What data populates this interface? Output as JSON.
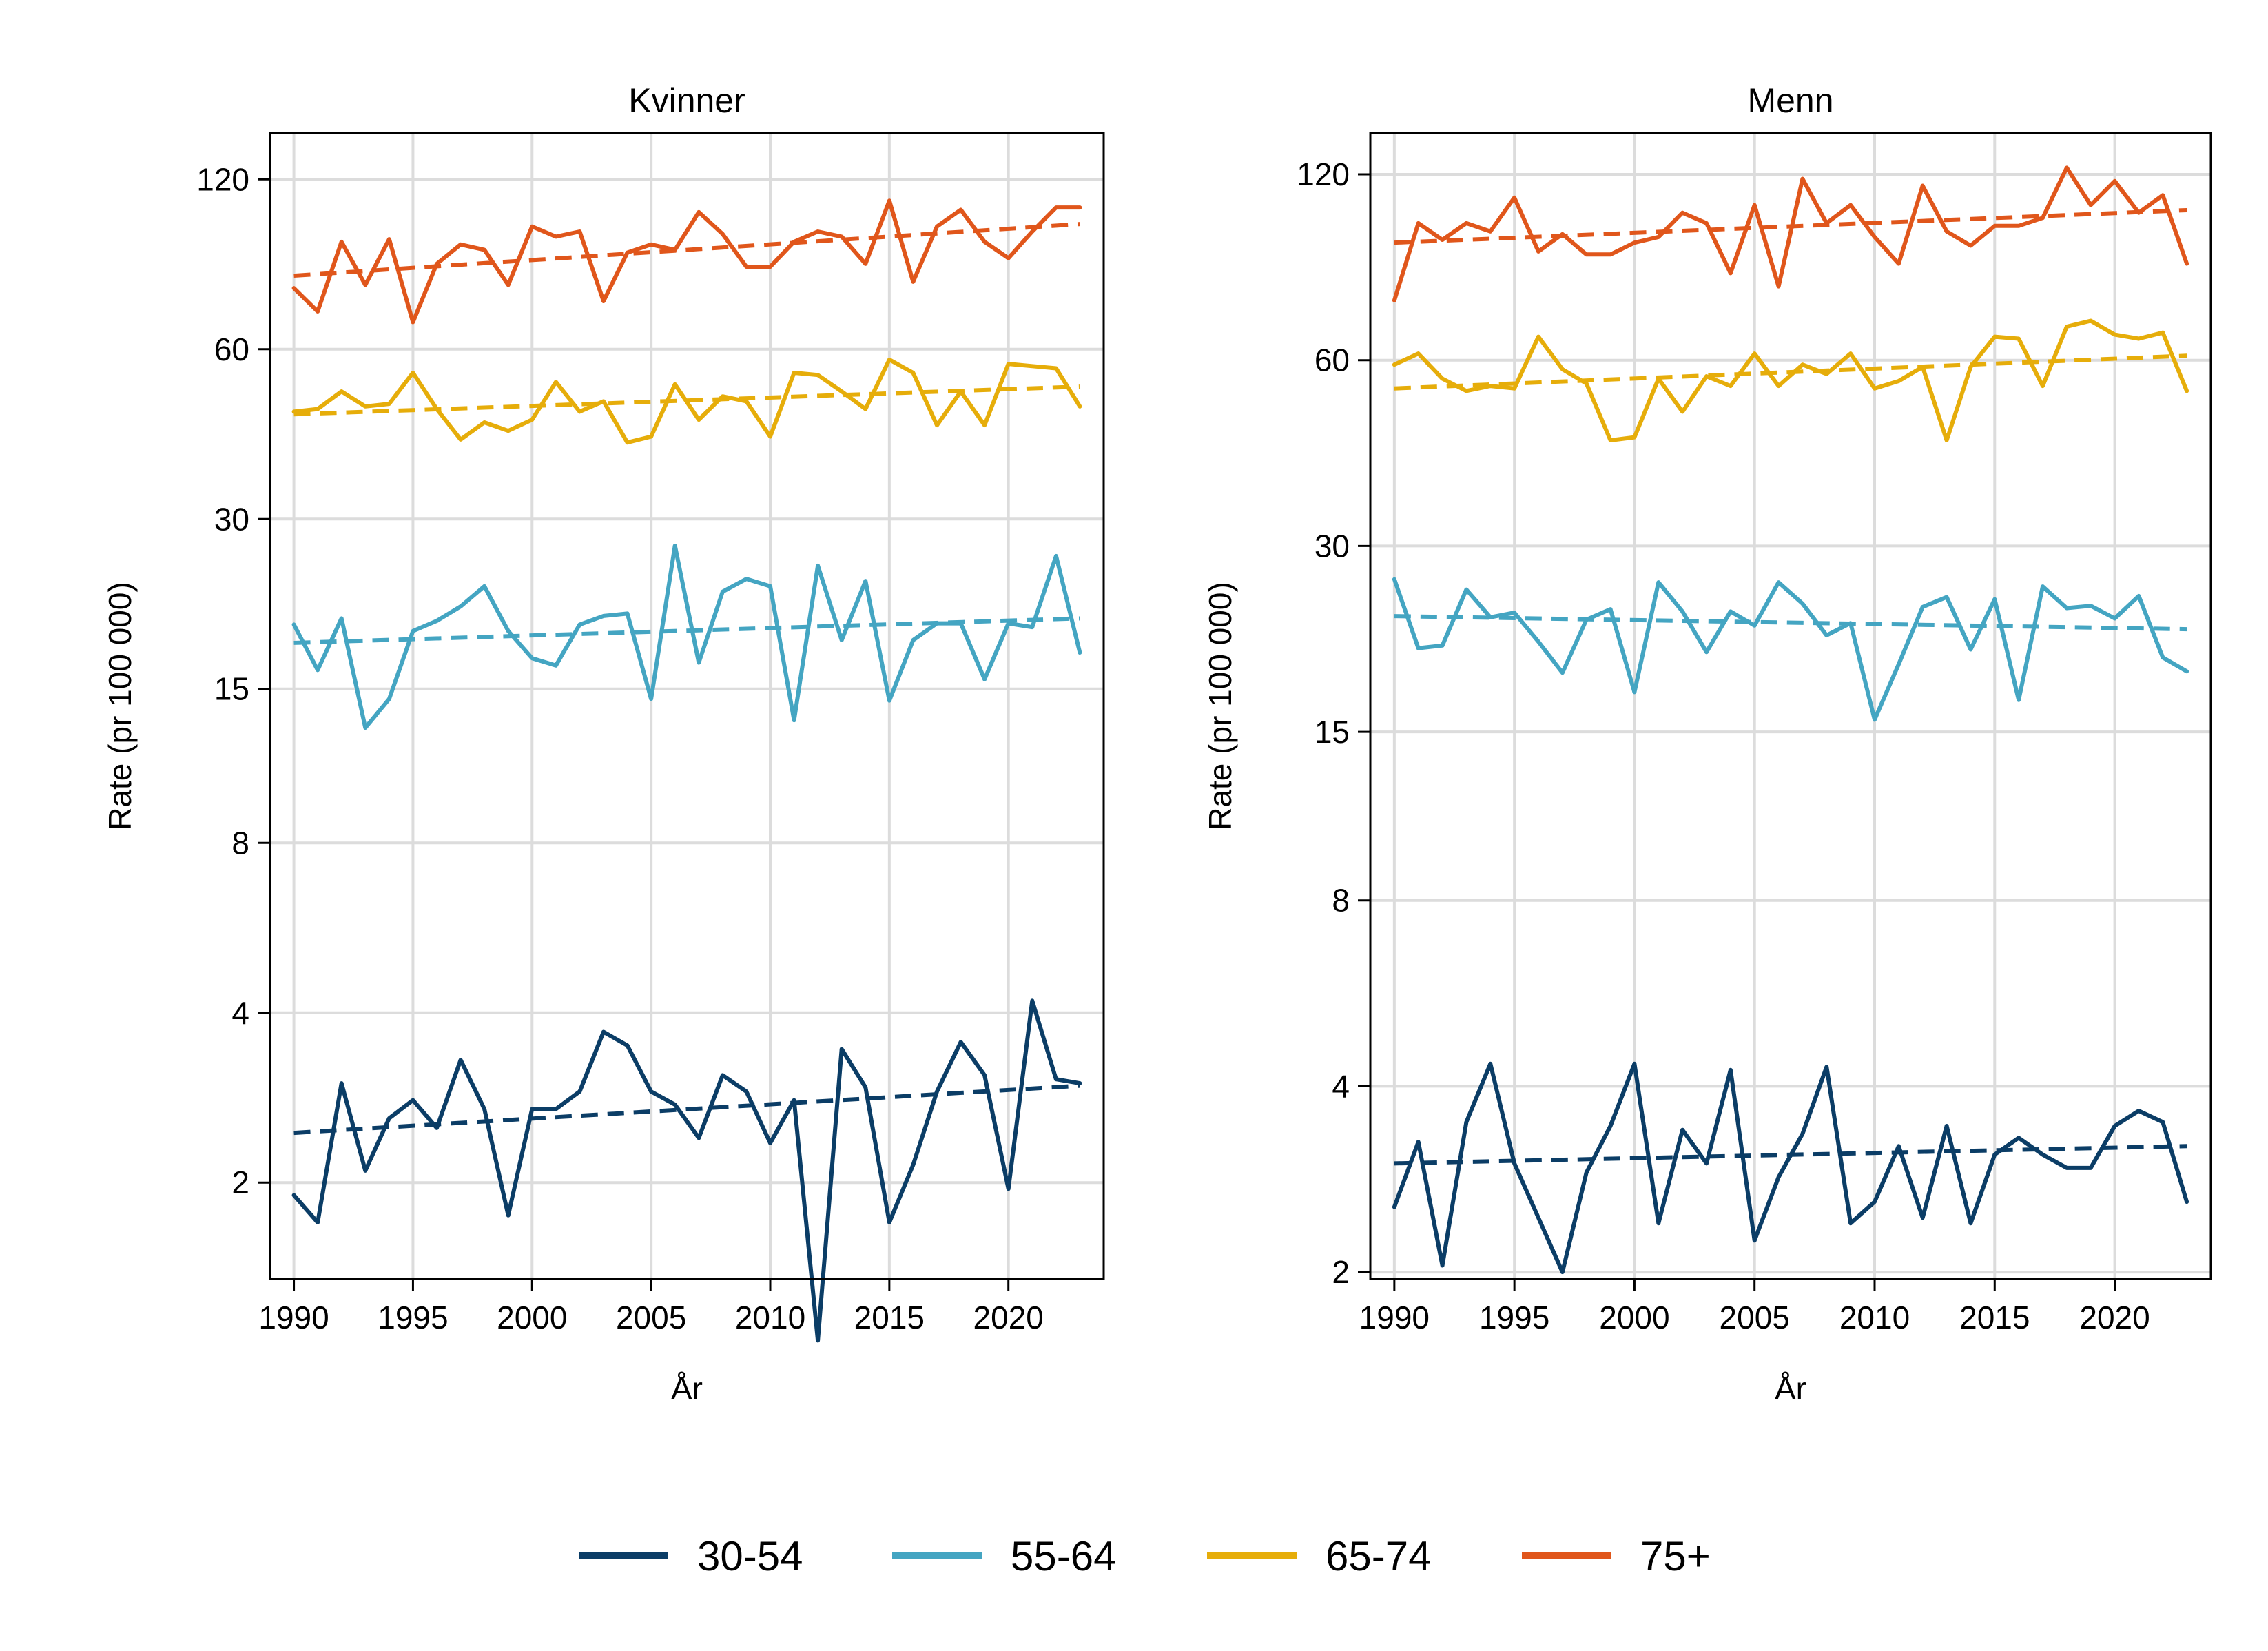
{
  "legend_position": "bottom",
  "scale": "log",
  "grid": true,
  "legend": [
    {
      "label": "30-54",
      "color": "#0b3d66"
    },
    {
      "label": "55-64",
      "color": "#44a5c2"
    },
    {
      "label": "65-74",
      "color": "#e6ad0a"
    },
    {
      "label": "75+",
      "color": "#e0561b"
    }
  ],
  "chart_data": [
    {
      "type": "line",
      "title": "Kvinner",
      "xlabel": "År",
      "ylabel": "Rate (pr 100 000)",
      "y_scale": "log2",
      "xlim": [
        1989,
        2024
      ],
      "ylim": [
        1.35,
        145
      ],
      "xticks": [
        1990,
        1995,
        2000,
        2005,
        2010,
        2015,
        2020
      ],
      "yticks": [
        2,
        4,
        8,
        15,
        30,
        60,
        120
      ],
      "x": [
        1990,
        1991,
        1992,
        1993,
        1994,
        1995,
        1996,
        1997,
        1998,
        1999,
        2000,
        2001,
        2002,
        2003,
        2004,
        2005,
        2006,
        2007,
        2008,
        2009,
        2010,
        2011,
        2012,
        2013,
        2014,
        2015,
        2016,
        2017,
        2018,
        2019,
        2020,
        2021,
        2022,
        2023
      ],
      "series": [
        {
          "name": "30-54",
          "color": "#0b3d66",
          "values": [
            1.9,
            1.7,
            3.0,
            2.1,
            2.6,
            2.8,
            2.5,
            3.3,
            2.7,
            1.75,
            2.7,
            2.7,
            2.9,
            3.7,
            3.5,
            2.9,
            2.75,
            2.4,
            3.1,
            2.9,
            2.35,
            2.8,
            1.05,
            3.45,
            2.95,
            1.7,
            2.15,
            2.9,
            3.55,
            3.1,
            1.95,
            4.2,
            3.05,
            3.0
          ],
          "trend": [
            2.45,
            2.97
          ]
        },
        {
          "name": "55-64",
          "color": "#44a5c2",
          "values": [
            19.5,
            16.2,
            20.0,
            12.8,
            14.4,
            19.0,
            19.8,
            21.0,
            22.8,
            19.0,
            17.0,
            16.5,
            19.5,
            20.2,
            20.4,
            14.4,
            26.9,
            16.7,
            22.3,
            23.5,
            22.8,
            13.2,
            24.8,
            18.3,
            23.3,
            14.3,
            18.3,
            19.6,
            19.6,
            15.6,
            19.6,
            19.3,
            25.8,
            17.4
          ],
          "trend": [
            18.1,
            20.0
          ]
        },
        {
          "name": "65-74",
          "color": "#e6ad0a",
          "values": [
            46.5,
            47.0,
            50.5,
            47.5,
            48.0,
            54.5,
            47.0,
            41.5,
            44.5,
            43.0,
            45.0,
            52.5,
            46.5,
            48.5,
            41.0,
            42.0,
            52.0,
            45.0,
            49.5,
            48.5,
            42.0,
            54.5,
            54.0,
            50.5,
            47.0,
            57.5,
            54.5,
            44.0,
            50.5,
            44.0,
            56.5,
            56.0,
            55.5,
            47.5
          ],
          "trend": [
            46.0,
            51.5
          ]
        },
        {
          "name": "75+",
          "color": "#e0561b",
          "values": [
            77,
            70,
            93,
            78,
            94,
            67,
            85,
            92,
            90,
            78,
            99,
            95,
            97,
            73,
            89,
            92,
            90,
            105,
            96,
            84,
            84,
            93,
            97,
            95,
            85,
            110,
            79,
            99,
            106,
            93,
            87,
            97,
            107,
            107
          ],
          "trend": [
            81,
            100
          ]
        }
      ]
    },
    {
      "type": "line",
      "title": "Menn",
      "xlabel": "År",
      "ylabel": "Rate (pr 100 000)",
      "y_scale": "log2",
      "xlim": [
        1989,
        2024
      ],
      "ylim": [
        1.95,
        140
      ],
      "xticks": [
        1990,
        1995,
        2000,
        2005,
        2010,
        2015,
        2020
      ],
      "yticks": [
        2,
        4,
        8,
        15,
        30,
        60,
        120
      ],
      "x": [
        1990,
        1991,
        1992,
        1993,
        1994,
        1995,
        1996,
        1997,
        1998,
        1999,
        2000,
        2001,
        2002,
        2003,
        2004,
        2005,
        2006,
        2007,
        2008,
        2009,
        2010,
        2011,
        2012,
        2013,
        2014,
        2015,
        2016,
        2017,
        2018,
        2019,
        2020,
        2021,
        2022,
        2023
      ],
      "series": [
        {
          "name": "30-54",
          "color": "#0b3d66",
          "values": [
            2.55,
            3.25,
            2.05,
            3.5,
            4.35,
            3.0,
            2.45,
            2.0,
            2.9,
            3.45,
            4.35,
            2.4,
            3.4,
            3.0,
            4.25,
            2.25,
            2.85,
            3.35,
            4.3,
            2.4,
            2.6,
            3.2,
            2.45,
            3.45,
            2.4,
            3.1,
            3.3,
            3.1,
            2.95,
            2.95,
            3.45,
            3.65,
            3.5,
            2.6
          ],
          "trend": [
            3.0,
            3.2
          ]
        },
        {
          "name": "55-64",
          "color": "#44a5c2",
          "values": [
            26.5,
            20.5,
            20.7,
            25.5,
            23.0,
            23.4,
            21.0,
            18.7,
            22.8,
            23.7,
            17.4,
            26.2,
            23.5,
            20.2,
            23.5,
            22.3,
            26.2,
            24.2,
            21.5,
            22.5,
            15.7,
            19.3,
            23.9,
            24.8,
            20.4,
            24.6,
            16.9,
            25.8,
            23.8,
            24.0,
            22.9,
            24.9,
            19.8,
            18.8
          ],
          "trend": [
            23.1,
            22.0
          ]
        },
        {
          "name": "65-74",
          "color": "#e6ad0a",
          "values": [
            59,
            61.5,
            56,
            53.5,
            54.5,
            54,
            65.5,
            58,
            55,
            44.5,
            45,
            56,
            49.5,
            56.5,
            54.5,
            61.5,
            54.5,
            59,
            57,
            61.5,
            54,
            55.5,
            58.5,
            44.5,
            58.5,
            65.5,
            65,
            54.5,
            68,
            69.5,
            66,
            65,
            66.5,
            53.5
          ],
          "trend": [
            54,
            61
          ]
        },
        {
          "name": "75+",
          "color": "#e0561b",
          "values": [
            75,
            100,
            94,
            100,
            97,
            110,
            90,
            96,
            89,
            89,
            93,
            95,
            104,
            100,
            83,
            107,
            79,
            118,
            100,
            107,
            95,
            86,
            115,
            97,
            92,
            99,
            99,
            102,
            123,
            107,
            117,
            104,
            111,
            86
          ],
          "trend": [
            93,
            105
          ]
        }
      ]
    }
  ]
}
